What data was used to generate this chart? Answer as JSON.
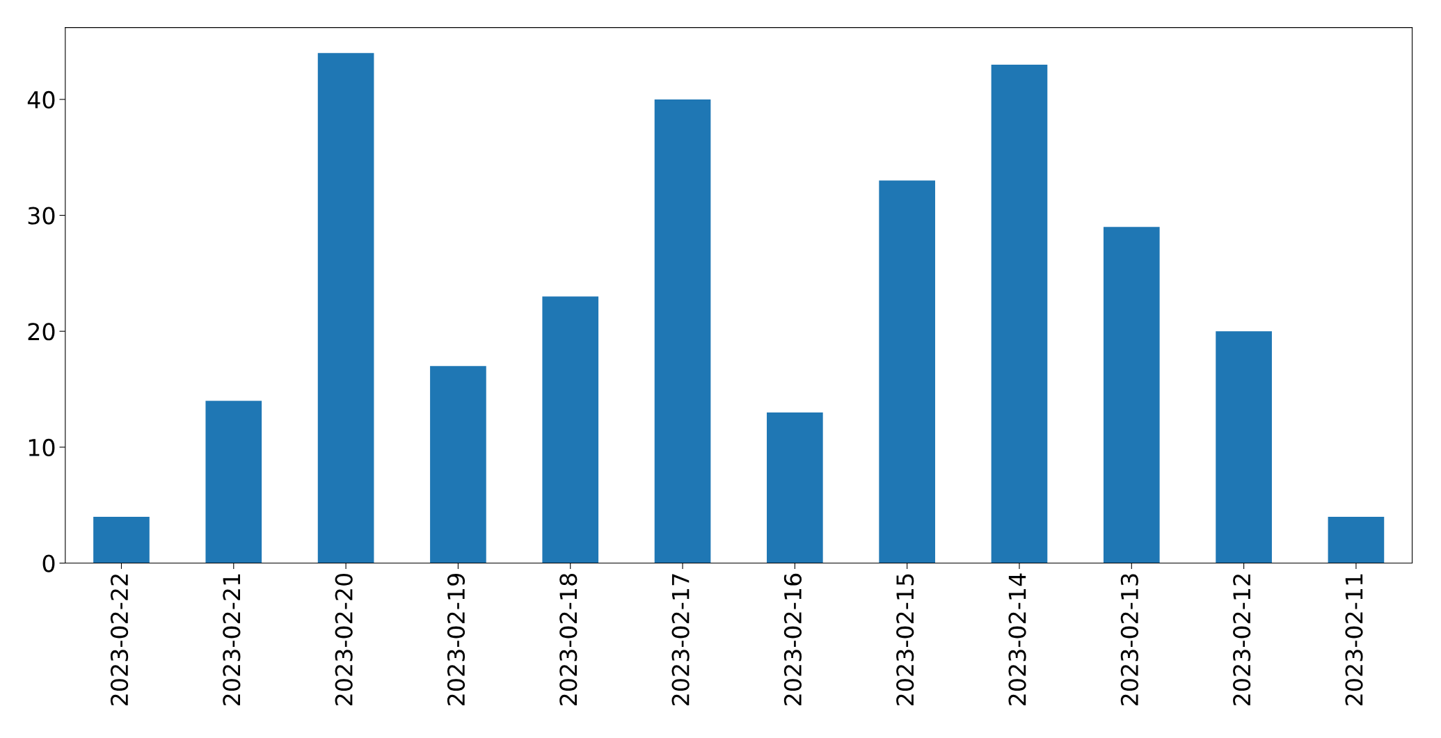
{
  "chart_data": {
    "type": "bar",
    "categories": [
      "2023-02-22",
      "2023-02-21",
      "2023-02-20",
      "2023-02-19",
      "2023-02-18",
      "2023-02-17",
      "2023-02-16",
      "2023-02-15",
      "2023-02-14",
      "2023-02-13",
      "2023-02-12",
      "2023-02-11"
    ],
    "values": [
      4,
      14,
      44,
      17,
      23,
      40,
      13,
      33,
      43,
      29,
      20,
      4
    ],
    "color": "#1f77b4",
    "ylim": [
      0,
      46.2
    ],
    "yticks": [
      0,
      10,
      20,
      30,
      40
    ],
    "grid": false
  }
}
